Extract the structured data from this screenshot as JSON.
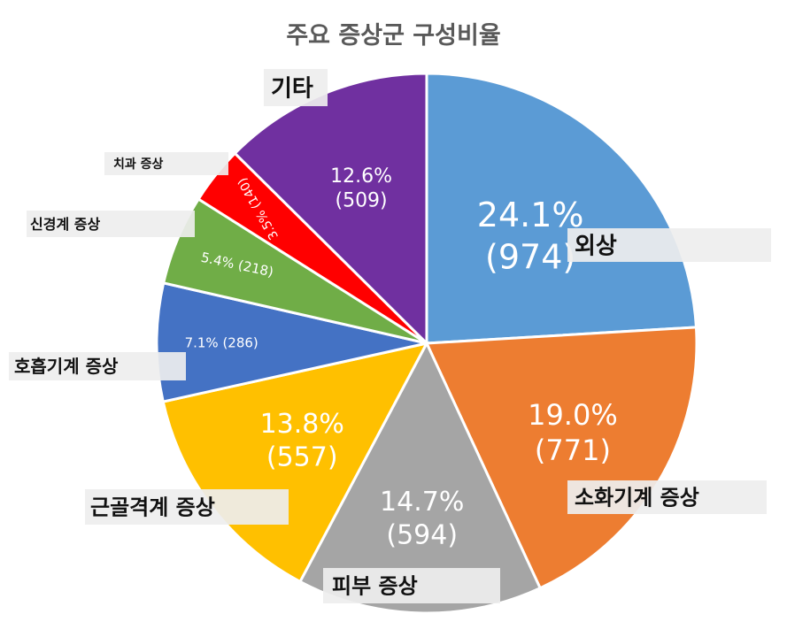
{
  "chart_data": {
    "type": "pie",
    "title": "주요 증상군 구성비율",
    "slices": [
      {
        "label": "외상",
        "percent": "24.1%",
        "count": 974,
        "color": "#5b9bd5"
      },
      {
        "label": "소화기계 증상",
        "percent": "19.0%",
        "count": 771,
        "color": "#ed7d31"
      },
      {
        "label": "피부 증상",
        "percent": "14.7%",
        "count": 594,
        "color": "#a5a5a5"
      },
      {
        "label": "근골격계 증상",
        "percent": "13.8%",
        "count": 557,
        "color": "#ffc000"
      },
      {
        "label": "호흡기계 증상",
        "percent": "7.1%",
        "count": 286,
        "color": "#4472c4"
      },
      {
        "label": "신경계 증상",
        "percent": "5.4%",
        "count": 218,
        "color": "#70ad47"
      },
      {
        "label": "치과 증상",
        "percent": "3.5%",
        "count": 140,
        "color": "#ff0000"
      },
      {
        "label": "기타",
        "percent": "12.6%",
        "count": 509,
        "color": "#7030a0"
      }
    ]
  }
}
